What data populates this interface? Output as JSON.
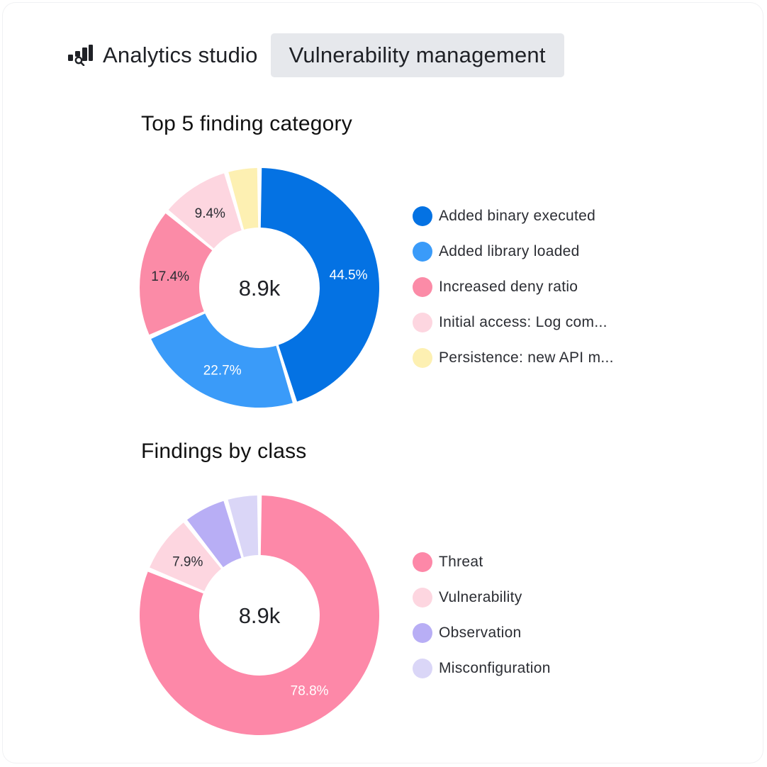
{
  "header": {
    "app_icon": "analytics-chart-icon",
    "app_title": "Analytics studio",
    "tab_label": "Vulnerability management"
  },
  "chart_data": [
    {
      "type": "pie",
      "title": "Top 5 finding category",
      "center_label": "8.9k",
      "categories": [
        "Added binary executed",
        "Added library loaded",
        "Increased deny ratio",
        "Initial access: Log com...",
        "Persistence: new API m..."
      ],
      "values": [
        44.5,
        22.7,
        17.4,
        9.4,
        4.4
      ],
      "data_labels": [
        "44.5%",
        "22.7%",
        "17.4%",
        "9.4%",
        ""
      ],
      "colors": [
        "#0472e3",
        "#3a9bf9",
        "#fb8ba7",
        "#fdd6e0",
        "#fdf0b2"
      ],
      "label_colors": [
        "#ffffff",
        "#ffffff",
        "#2b2d33",
        "#2b2d33",
        "#2b2d33"
      ],
      "legend_position": "right"
    },
    {
      "type": "pie",
      "title": "Findings by class",
      "center_label": "8.9k",
      "categories": [
        "Threat",
        "Vulnerability",
        "Observation",
        "Misconfiguration"
      ],
      "values": [
        78.8,
        7.9,
        5.9,
        4.4
      ],
      "data_labels": [
        "78.8%",
        "7.9%",
        "",
        ""
      ],
      "colors": [
        "#fd88a8",
        "#fdd6e0",
        "#b8aef5",
        "#dad6f7"
      ],
      "label_colors": [
        "#ffffff",
        "#2b2d33",
        "#2b2d33",
        "#2b2d33"
      ],
      "legend_position": "right"
    }
  ]
}
